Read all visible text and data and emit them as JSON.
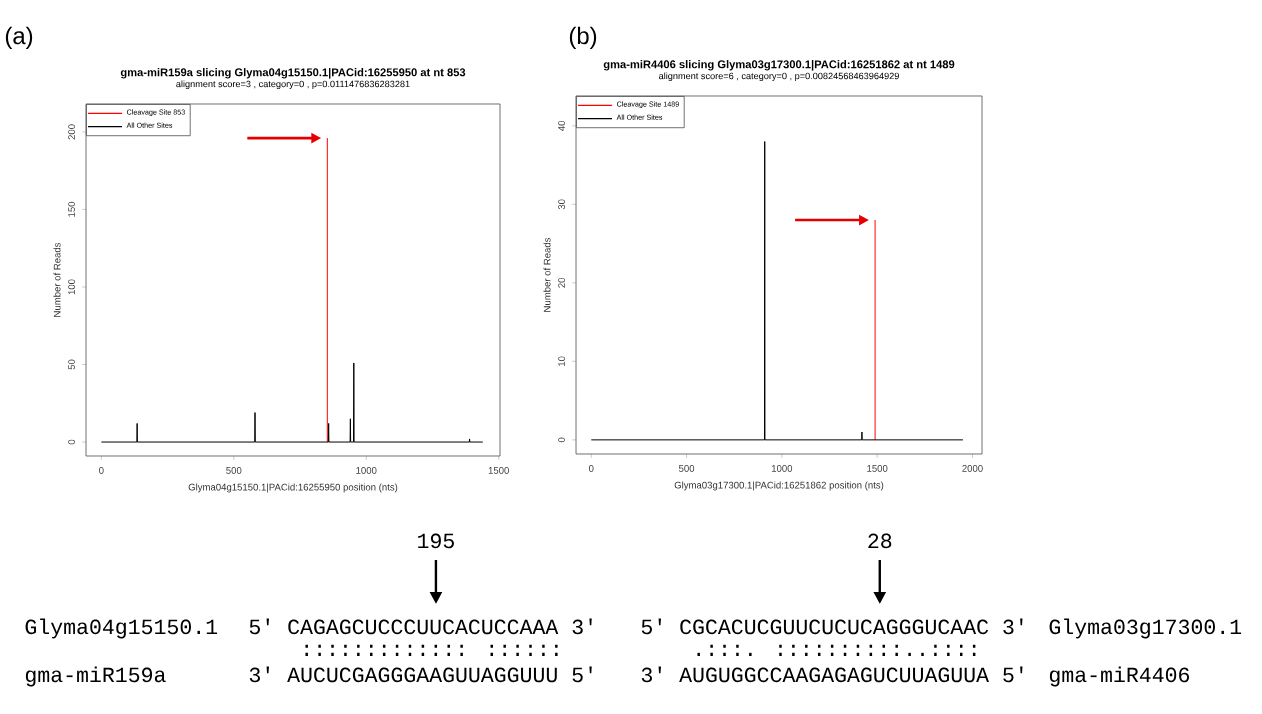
{
  "chart_data": [
    {
      "type": "line",
      "title": "gma-miR159a slicing Glyma04g15150.1|PACid:16255950 at nt 853",
      "subtitle": "alignment score=3 , category=0 , p=0.0111476836283281",
      "xlabel": "Glyma04g15150.1|PACid:16255950 position (nts)",
      "ylabel": "Number of Reads",
      "xlim": [
        -58,
        1505
      ],
      "ylim": [
        -9,
        218
      ],
      "xticks": [
        0,
        500,
        1000,
        1500
      ],
      "yticks": [
        0,
        50,
        100,
        150,
        200
      ],
      "legend": "top left",
      "series": [
        {
          "name": "Cleavage Site 853",
          "color": "#ff0000",
          "x": [
            853,
            853
          ],
          "values": [
            0,
            196
          ]
        },
        {
          "name": "All Other Sites",
          "color": "#000000",
          "x": [
            0,
            134,
            135,
            136,
            579,
            580,
            581,
            857,
            858,
            859,
            939,
            940,
            941,
            952,
            953,
            954,
            1389,
            1390,
            1391,
            1440
          ],
          "values": [
            0,
            0,
            12,
            0,
            0,
            19,
            0,
            0,
            12,
            0,
            0,
            15,
            0,
            0,
            51,
            0,
            0,
            2,
            0,
            0
          ]
        }
      ],
      "annotations": [
        "(a)",
        "195",
        "Glyma04g15150.1",
        "5' CAGAGCUCCCUUCACUCCAAA 3'",
        "::::::::::::: ::::::",
        "gma-miR159a",
        "3' AUCUCGAGGGAAGUUAGGUUU 5'"
      ]
    },
    {
      "type": "line",
      "title": "gma-miR4406 slicing Glyma03g17300.1|PACid:16251862 at nt 1489",
      "subtitle": "alignment score=6 , category=0 , p=0.00824568463964929",
      "xlabel": "Glyma03g17300.1|PACid:16251862 position (nts)",
      "ylabel": "Number of Reads",
      "xlim": [
        -80,
        2050
      ],
      "ylim": [
        -1.8,
        43.8
      ],
      "xticks": [
        0,
        500,
        1000,
        1500,
        2000
      ],
      "yticks": [
        0,
        10,
        20,
        30,
        40
      ],
      "legend": "top left",
      "series": [
        {
          "name": "Cleavage Site 1489",
          "color": "#ff0000",
          "x": [
            1489,
            1489
          ],
          "values": [
            0,
            28
          ]
        },
        {
          "name": "All Other Sites",
          "color": "#000000",
          "x": [
            0,
            909,
            910,
            911,
            1419,
            1420,
            1421,
            1950
          ],
          "values": [
            0,
            0,
            38,
            0,
            0,
            1,
            0,
            0
          ]
        }
      ],
      "annotations": [
        "(b)",
        "28",
        "Glyma03g17300.1",
        "5' CGCACUCGUUCUCUCAGGGUCAAC 3'",
        ".:::. ::::::::::..::::",
        "gma-miR4406",
        "3' AUGUGGCCAAGAGAGUCUUAGUUA 5'"
      ]
    }
  ]
}
